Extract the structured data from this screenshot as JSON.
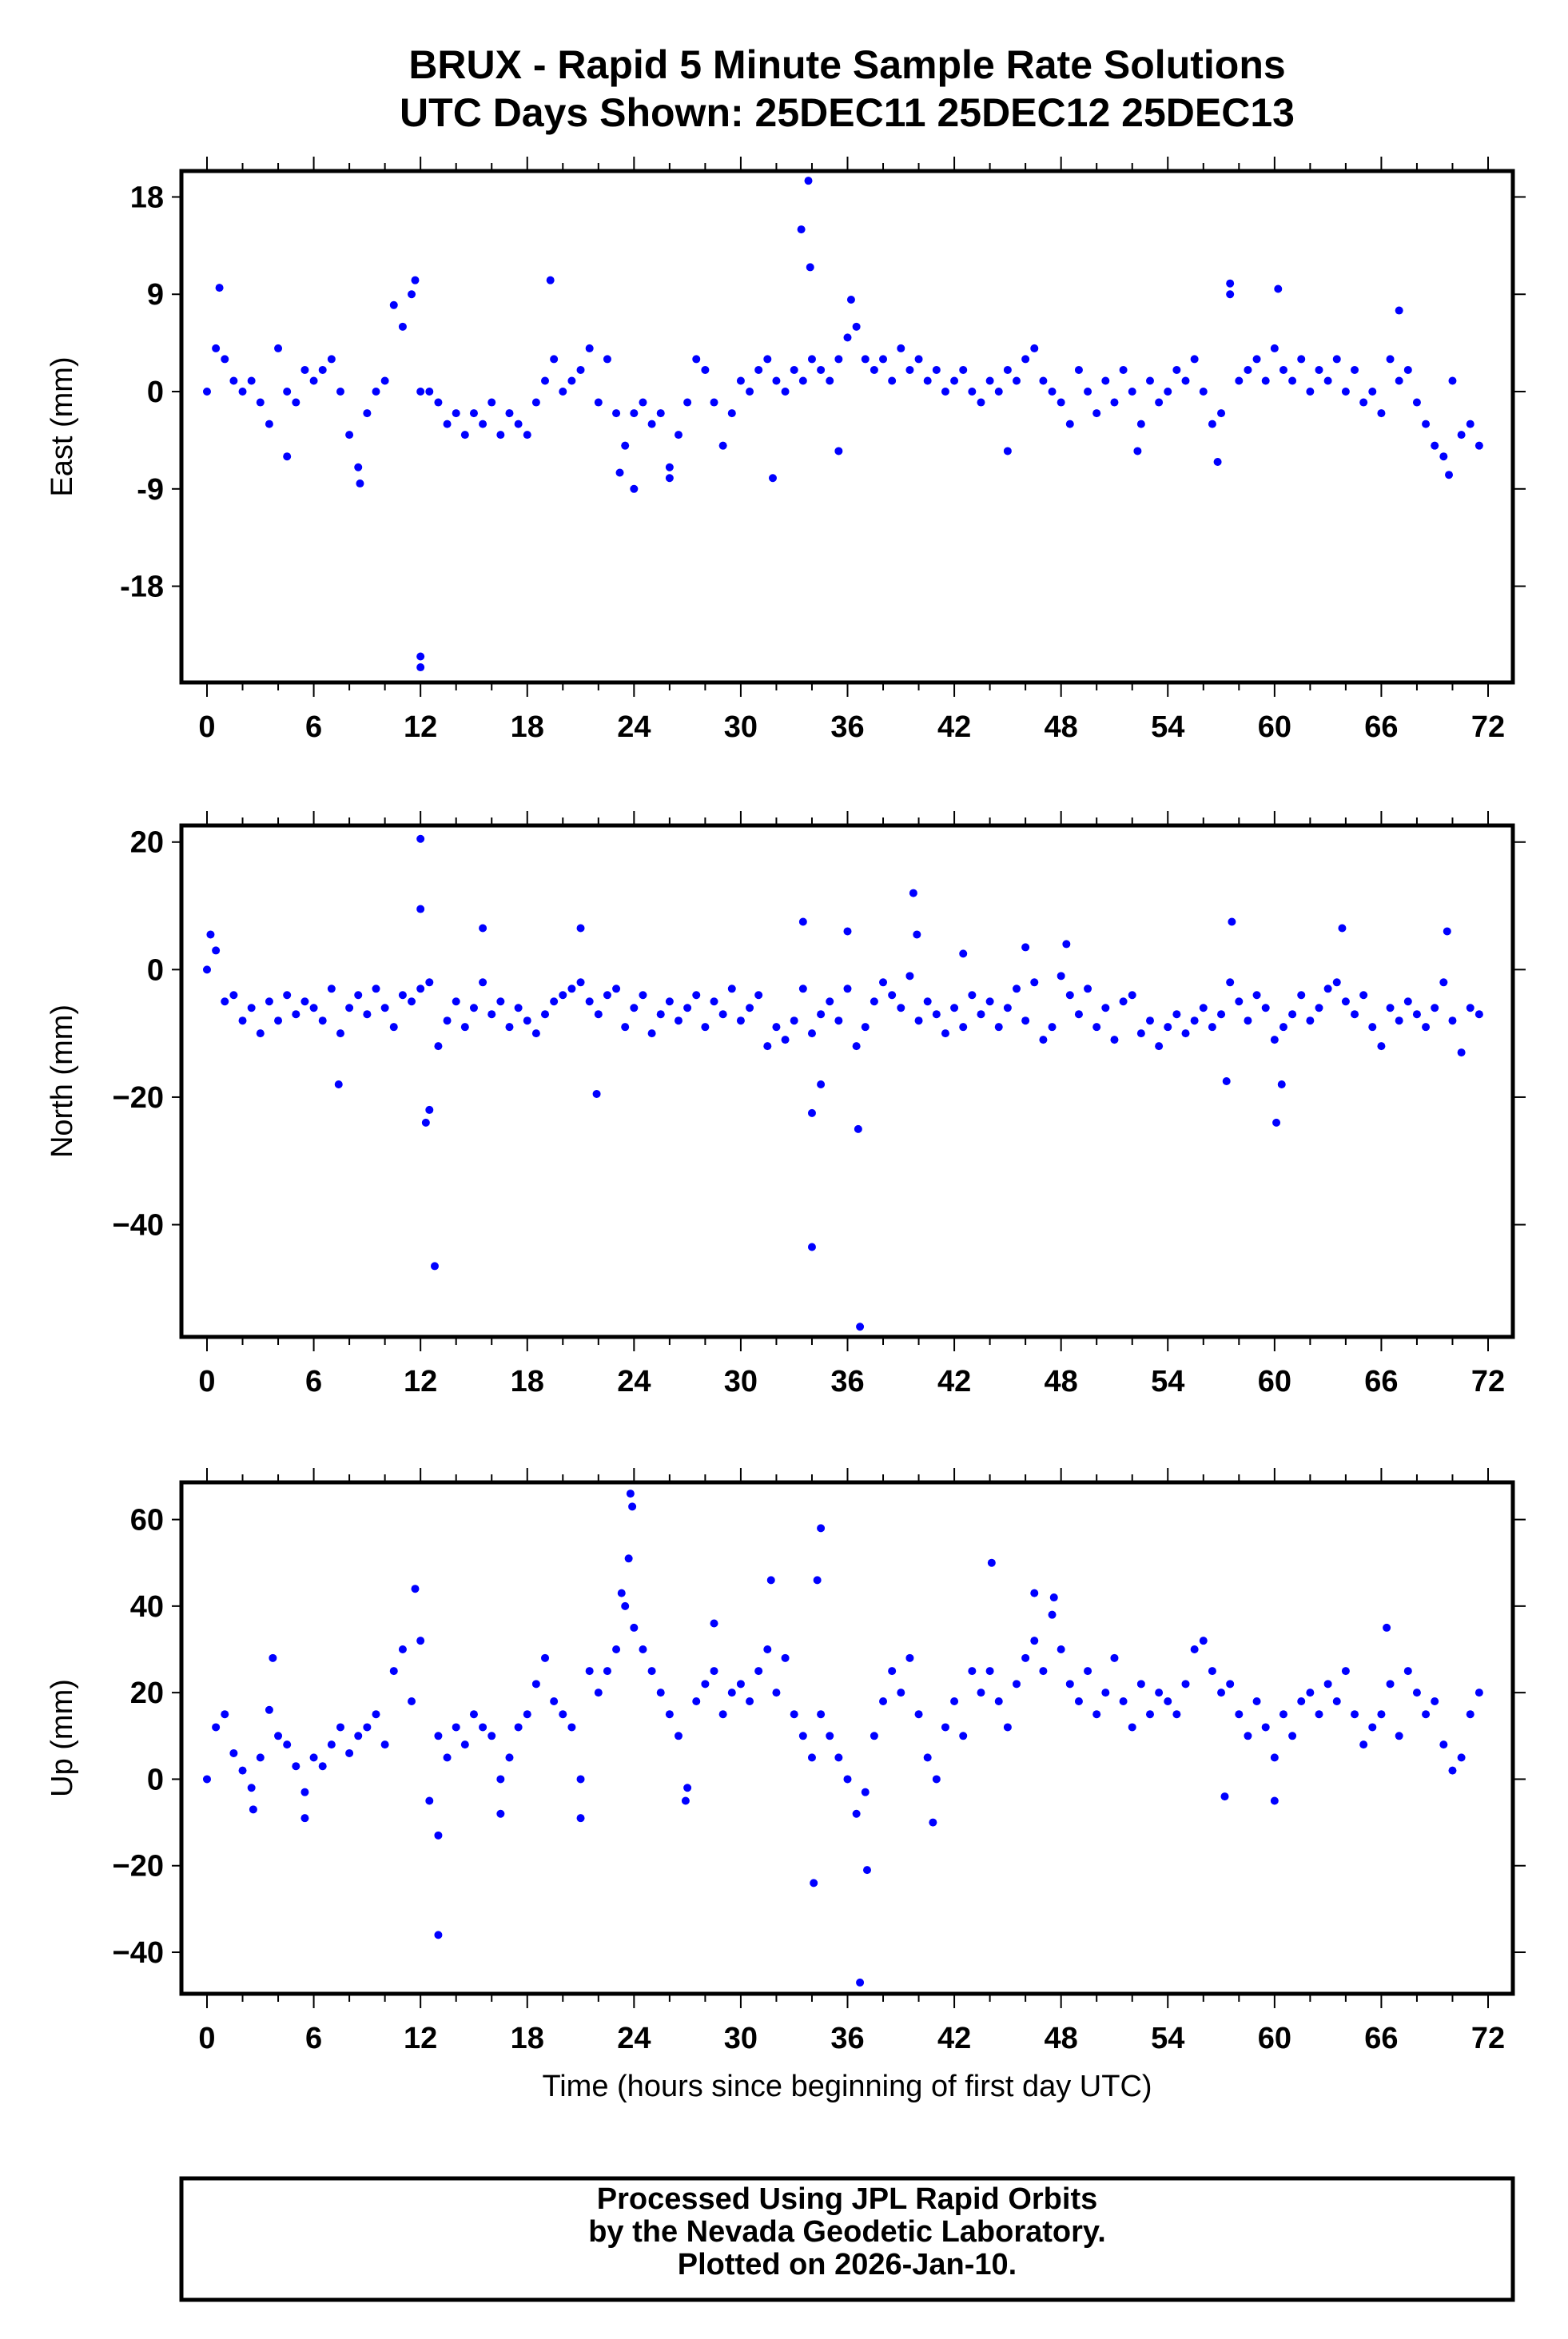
{
  "colors": {
    "points": "#0000ff",
    "frame": "#000000"
  },
  "footer": {
    "line1": "Processed Using JPL Rapid Orbits",
    "line2": "by the Nevada Geodetic Laboratory.",
    "line3": "Plotted on 2026-Jan-10."
  },
  "chart_data": [
    {
      "type": "scatter",
      "title": "BRUX - Rapid 5 Minute Sample Rate Solutions",
      "subtitle": "UTC Days Shown:  25DEC11 25DEC12 25DEC13",
      "xlabel": "",
      "ylabel": "East (mm)",
      "xlim": [
        -1,
        73
      ],
      "ylim": [
        -26.9,
        20.4
      ],
      "xticks": [
        "0",
        "6",
        "12",
        "18",
        "24",
        "30",
        "36",
        "42",
        "48",
        "54",
        "60",
        "66",
        "72"
      ],
      "yticks": [
        "18",
        "9",
        "0",
        "-9",
        "-18"
      ],
      "ytick_values": [
        18,
        9,
        0,
        -9,
        -18
      ],
      "x_start": 0,
      "x_step": 0.5,
      "y": [
        0,
        4,
        3,
        1,
        0,
        1,
        -1,
        -3,
        4,
        0,
        -1,
        2,
        1,
        2,
        3,
        0,
        -4,
        -7,
        -2,
        0,
        1,
        8,
        6,
        9,
        0,
        0,
        -1,
        -3,
        -2,
        -4,
        -2,
        -3,
        -1,
        -4,
        -2,
        -3,
        -4,
        -1,
        1,
        3,
        0,
        1,
        2,
        4,
        -1,
        3,
        -2,
        -5,
        -2,
        -1,
        -3,
        -2,
        -7,
        -4,
        -1,
        3,
        2,
        -1,
        -5,
        -2,
        1,
        0,
        2,
        3,
        1,
        0,
        2,
        1,
        3,
        2,
        1,
        3,
        5,
        6,
        3,
        2,
        3,
        1,
        4,
        2,
        3,
        1,
        2,
        0,
        1,
        2,
        0,
        -1,
        1,
        0,
        2,
        1,
        3,
        4,
        1,
        0,
        -1,
        -3,
        2,
        0,
        -2,
        1,
        -1,
        2,
        0,
        -3,
        1,
        -1,
        0,
        2,
        1,
        3,
        0,
        -3,
        -2,
        9,
        1,
        2,
        3,
        1,
        4,
        2,
        1,
        3,
        0,
        2,
        1,
        3,
        0,
        2,
        -1,
        0,
        -2,
        3,
        1,
        2,
        -1,
        -3,
        -5,
        -6,
        1,
        -4,
        -3,
        -5
      ],
      "extra_points": [
        [
          0.7,
          9.6
        ],
        [
          12,
          -24.5
        ],
        [
          12,
          -25.5
        ],
        [
          33.4,
          15
        ],
        [
          33.8,
          19.5
        ],
        [
          33.9,
          11.5
        ],
        [
          19.3,
          10.3
        ],
        [
          11.7,
          10.3
        ],
        [
          8.6,
          -8.5
        ],
        [
          24,
          -9
        ],
        [
          31.8,
          -8
        ],
        [
          35.5,
          -5.5
        ],
        [
          4.5,
          -6
        ],
        [
          57.5,
          10
        ],
        [
          60.2,
          9.5
        ],
        [
          67,
          7.5
        ],
        [
          69.8,
          -7.7
        ],
        [
          23.2,
          -7.5
        ],
        [
          26,
          -8
        ],
        [
          36.2,
          8.5
        ],
        [
          56.8,
          -6.5
        ],
        [
          45,
          -5.5
        ],
        [
          52.3,
          -5.5
        ]
      ]
    },
    {
      "type": "scatter",
      "xlabel": "",
      "ylabel": "North (mm)",
      "xlim": [
        -1,
        73
      ],
      "ylim": [
        -57.6,
        22.6
      ],
      "xticks": [
        "0",
        "6",
        "12",
        "18",
        "24",
        "30",
        "36",
        "42",
        "48",
        "54",
        "60",
        "66",
        "72"
      ],
      "yticks": [
        "20",
        "0",
        "−20",
        "−40"
      ],
      "ytick_values": [
        20,
        0,
        -20,
        -40
      ],
      "x_start": 0,
      "x_step": 0.5,
      "y": [
        0,
        3,
        -5,
        -4,
        -8,
        -6,
        -10,
        -5,
        -8,
        -4,
        -7,
        -5,
        -6,
        -8,
        -3,
        -10,
        -6,
        -4,
        -7,
        -3,
        -6,
        -9,
        -4,
        -5,
        -3,
        -2,
        -12,
        -8,
        -5,
        -9,
        -6,
        -2,
        -7,
        -5,
        -9,
        -6,
        -8,
        -10,
        -7,
        -5,
        -4,
        -3,
        -2,
        -5,
        -7,
        -4,
        -3,
        -9,
        -6,
        -4,
        -10,
        -7,
        -5,
        -8,
        -6,
        -4,
        -9,
        -5,
        -7,
        -3,
        -8,
        -6,
        -4,
        -12,
        -9,
        -11,
        -8,
        -3,
        -10,
        -7,
        -5,
        -8,
        -3,
        -12,
        -9,
        -5,
        -2,
        -4,
        -6,
        -1,
        -8,
        -5,
        -7,
        -10,
        -6,
        -9,
        -4,
        -7,
        -5,
        -9,
        -6,
        -3,
        -8,
        -2,
        -11,
        -9,
        -1,
        -4,
        -7,
        -3,
        -9,
        -6,
        -11,
        -5,
        -4,
        -10,
        -8,
        -12,
        -9,
        -7,
        -10,
        -8,
        -6,
        -9,
        -7,
        -2,
        -5,
        -8,
        -4,
        -6,
        -11,
        -9,
        -7,
        -4,
        -8,
        -6,
        -3,
        -2,
        -5,
        -7,
        -4,
        -9,
        -12,
        -6,
        -8,
        -5,
        -7,
        -9,
        -6,
        -2,
        -8,
        -13,
        -6,
        -7
      ],
      "extra_points": [
        [
          0.2,
          5.5
        ],
        [
          12,
          20.5
        ],
        [
          12,
          9.5
        ],
        [
          12.3,
          -24
        ],
        [
          12.5,
          -22
        ],
        [
          12.8,
          -46.5
        ],
        [
          15.5,
          6.5
        ],
        [
          7.4,
          -18
        ],
        [
          21.9,
          -19.5
        ],
        [
          21,
          6.5
        ],
        [
          33.5,
          7.5
        ],
        [
          34,
          -22.5
        ],
        [
          34,
          -43.5
        ],
        [
          34.5,
          -18
        ],
        [
          36,
          6
        ],
        [
          36.6,
          -25
        ],
        [
          36.7,
          -56
        ],
        [
          39.7,
          12
        ],
        [
          39.9,
          5.5
        ],
        [
          42.5,
          2.5
        ],
        [
          46,
          3.5
        ],
        [
          48.3,
          4
        ],
        [
          57.6,
          7.5
        ],
        [
          57.3,
          -17.5
        ],
        [
          60.1,
          -24
        ],
        [
          63.8,
          6.5
        ],
        [
          69.7,
          6
        ],
        [
          60.4,
          -18
        ]
      ]
    },
    {
      "type": "scatter",
      "xlabel": "Time (hours since beginning of first day UTC)",
      "ylabel": "Up (mm)",
      "xlim": [
        -1,
        73
      ],
      "ylim": [
        -49.6,
        68.6
      ],
      "xticks": [
        "0",
        "6",
        "12",
        "18",
        "24",
        "30",
        "36",
        "42",
        "48",
        "54",
        "60",
        "66",
        "72"
      ],
      "yticks": [
        "60",
        "40",
        "20",
        "0",
        "−20",
        "−40"
      ],
      "ytick_values": [
        60,
        40,
        20,
        0,
        -20,
        -40
      ],
      "x_start": 0,
      "x_step": 0.5,
      "y": [
        0,
        12,
        15,
        6,
        2,
        -2,
        5,
        16,
        10,
        8,
        3,
        -3,
        5,
        3,
        8,
        12,
        6,
        10,
        12,
        15,
        8,
        25,
        30,
        18,
        32,
        -5,
        10,
        5,
        12,
        8,
        15,
        12,
        10,
        0,
        5,
        12,
        15,
        22,
        28,
        18,
        15,
        12,
        0,
        25,
        20,
        25,
        30,
        40,
        35,
        30,
        25,
        20,
        15,
        10,
        -2,
        18,
        22,
        25,
        15,
        20,
        22,
        18,
        25,
        30,
        20,
        28,
        15,
        10,
        5,
        15,
        10,
        5,
        0,
        -8,
        -3,
        10,
        18,
        25,
        20,
        28,
        15,
        5,
        0,
        12,
        18,
        10,
        25,
        20,
        25,
        18,
        12,
        22,
        28,
        32,
        25,
        38,
        30,
        22,
        18,
        25,
        15,
        20,
        28,
        18,
        12,
        22,
        15,
        20,
        18,
        15,
        22,
        30,
        32,
        25,
        20,
        22,
        15,
        10,
        18,
        12,
        5,
        15,
        10,
        18,
        20,
        15,
        22,
        18,
        25,
        15,
        8,
        12,
        15,
        22,
        10,
        25,
        20,
        15,
        18,
        8,
        2,
        5,
        15,
        20
      ],
      "extra_points": [
        [
          11.7,
          44
        ],
        [
          13,
          -36
        ],
        [
          13,
          -13
        ],
        [
          23.8,
          66
        ],
        [
          23.9,
          63
        ],
        [
          23.7,
          51
        ],
        [
          23.3,
          43
        ],
        [
          34.5,
          58
        ],
        [
          34.3,
          46
        ],
        [
          31.7,
          46
        ],
        [
          34.1,
          -24
        ],
        [
          36.7,
          -47
        ],
        [
          37.1,
          -21
        ],
        [
          44.1,
          50
        ],
        [
          46.5,
          43
        ],
        [
          47.6,
          42
        ],
        [
          57.2,
          -4
        ],
        [
          60,
          -5
        ],
        [
          66.3,
          35
        ],
        [
          21,
          -9
        ],
        [
          16.5,
          -8
        ],
        [
          5.5,
          -9
        ],
        [
          3.7,
          28
        ],
        [
          2.6,
          -7
        ],
        [
          26.9,
          -5
        ],
        [
          40.8,
          -10
        ],
        [
          28.5,
          36
        ]
      ]
    }
  ]
}
